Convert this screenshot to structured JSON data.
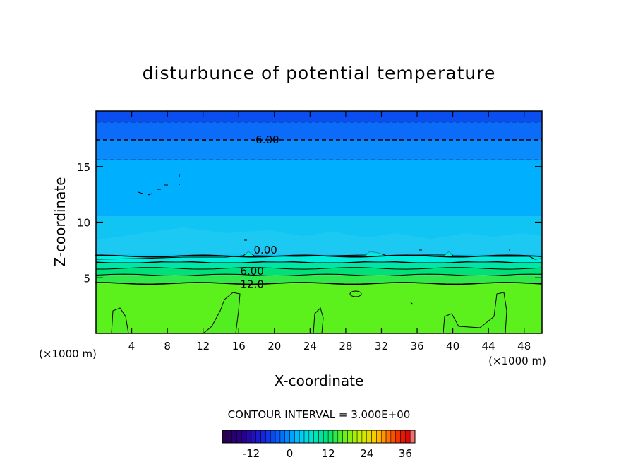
{
  "chart_data": {
    "type": "contour",
    "title": "disturbunce of potential temperature",
    "xlabel": "X-coordinate",
    "ylabel": "Z-coordinate",
    "x_unit": "(×1000 m)",
    "y_unit": "(×1000 m)",
    "xlim": [
      0,
      50
    ],
    "ylim": [
      0,
      20
    ],
    "x_ticks": [
      4,
      8,
      12,
      16,
      20,
      24,
      28,
      32,
      36,
      40,
      44,
      48
    ],
    "y_ticks": [
      5,
      10,
      15
    ],
    "contour_interval_text": "CONTOUR INTERVAL = 3.000E+00",
    "contour_labels": [
      {
        "text": "-6.00",
        "x": 19,
        "z": 17.4
      },
      {
        "text": "0.00",
        "x": 19,
        "z": 7.5
      },
      {
        "text": "6.00",
        "x": 17.5,
        "z": 5.6
      },
      {
        "text": "12.0",
        "x": 17.5,
        "z": 4.4
      }
    ],
    "contour_levels": [
      {
        "value": -9,
        "z": 19.0,
        "style": "dashed"
      },
      {
        "value": -6,
        "z": 17.4,
        "style": "dashed"
      },
      {
        "value": -3,
        "z": 15.6,
        "style": "dashed"
      },
      {
        "value": 0,
        "z": 6.95,
        "style": "solid"
      },
      {
        "value": 3,
        "z": 6.4,
        "style": "solid"
      },
      {
        "value": 6,
        "z": 5.85,
        "style": "solid"
      },
      {
        "value": 9,
        "z": 5.25,
        "style": "solid"
      },
      {
        "value": 12,
        "z": 4.5,
        "style": "solid"
      }
    ],
    "filled_bands": [
      {
        "z0": 19.0,
        "z1": 20.0,
        "color": "#0a4ef0"
      },
      {
        "z0": 17.4,
        "z1": 19.0,
        "color": "#0a6cf8"
      },
      {
        "z0": 15.6,
        "z1": 17.4,
        "color": "#0a8cfc"
      },
      {
        "z0": 10.5,
        "z1": 15.6,
        "color": "#00b0ff"
      },
      {
        "z0": 6.95,
        "z1": 10.5,
        "color": "#10c4f4"
      },
      {
        "z0": 6.4,
        "z1": 6.95,
        "color": "#00eede"
      },
      {
        "z0": 5.85,
        "z1": 6.4,
        "color": "#00e6a6"
      },
      {
        "z0": 5.25,
        "z1": 5.85,
        "color": "#00e07a"
      },
      {
        "z0": 4.5,
        "z1": 5.25,
        "color": "#30e84a"
      },
      {
        "z0": 0.0,
        "z1": 4.5,
        "color": "#5cf01c"
      }
    ],
    "colorbar": {
      "vmin": -21,
      "vmax": 39,
      "tick_values": [
        -12,
        0,
        12,
        24,
        36
      ],
      "tick_labels": [
        "-12",
        "0",
        "12",
        "24",
        "36"
      ]
    }
  }
}
